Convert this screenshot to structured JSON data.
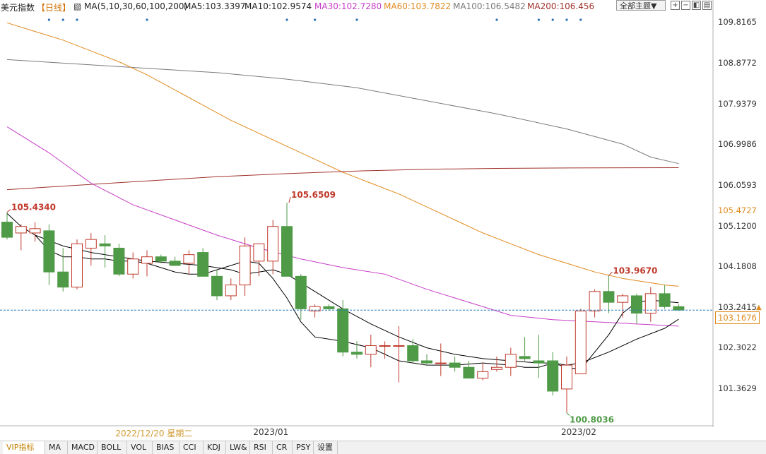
{
  "legend": {
    "symbol": "美元指数",
    "period": "【日线】",
    "ma_params": "MA(5,10,30,60,100,200)",
    "ma5": "MA5:103.3397",
    "ma10": "MA10:102.9574",
    "ma30": "MA30:102.7280",
    "ma60": "MA60:103.7822",
    "ma100": "MA100:106.5482",
    "ma200": "MA200:106.456"
  },
  "toolbar": {
    "theme_label": "全部主题▼",
    "btn1": "+",
    "btn2": "−",
    "btn3": "◧",
    "btn4": "▤"
  },
  "colors": {
    "up": "#c0392b",
    "down": "#4e9a46",
    "ma5": "#000000",
    "ma10": "#000000",
    "ma30": "#c83cc8",
    "ma60": "#e08a1e",
    "ma100": "#7a7a7a",
    "ma200": "#a0322a",
    "crosshair": "#2a7fc0"
  },
  "chart_data": {
    "type": "candlestick",
    "ylim": [
      100.55,
      110.0
    ],
    "y_ticks": [
      "109.8165",
      "108.8772",
      "107.9379",
      "106.9986",
      "106.0593",
      "105.1200",
      "104.1808",
      "103.2415",
      "102.3022",
      "101.3629"
    ],
    "y_tick_values": [
      109.8165,
      108.8772,
      107.9379,
      106.9986,
      106.0593,
      105.12,
      104.1808,
      103.2415,
      102.3022,
      101.3629
    ],
    "x_labels": [
      "2022/12/20 星期二",
      "2023/01",
      "2023/02"
    ],
    "x_label_index": [
      8,
      18,
      40
    ],
    "candles": [
      {
        "o": 105.2,
        "h": 105.43,
        "l": 104.8,
        "c": 104.85
      },
      {
        "o": 104.95,
        "h": 105.15,
        "l": 104.55,
        "c": 105.1
      },
      {
        "o": 104.95,
        "h": 105.2,
        "l": 104.75,
        "c": 105.05
      },
      {
        "o": 105.0,
        "h": 105.15,
        "l": 103.75,
        "c": 104.05
      },
      {
        "o": 104.05,
        "h": 104.6,
        "l": 103.6,
        "c": 103.7
      },
      {
        "o": 103.7,
        "h": 104.8,
        "l": 103.65,
        "c": 104.7
      },
      {
        "o": 104.6,
        "h": 104.95,
        "l": 104.2,
        "c": 104.8
      },
      {
        "o": 104.7,
        "h": 104.9,
        "l": 104.15,
        "c": 104.65
      },
      {
        "o": 104.6,
        "h": 104.7,
        "l": 103.95,
        "c": 104.0
      },
      {
        "o": 104.0,
        "h": 104.5,
        "l": 103.9,
        "c": 104.35
      },
      {
        "o": 104.25,
        "h": 104.55,
        "l": 103.95,
        "c": 104.4
      },
      {
        "o": 104.4,
        "h": 104.45,
        "l": 104.25,
        "c": 104.3
      },
      {
        "o": 104.3,
        "h": 104.4,
        "l": 104.2,
        "c": 104.2
      },
      {
        "o": 104.25,
        "h": 104.55,
        "l": 104.0,
        "c": 104.45
      },
      {
        "o": 104.5,
        "h": 104.6,
        "l": 103.95,
        "c": 103.95
      },
      {
        "o": 103.95,
        "h": 104.1,
        "l": 103.4,
        "c": 103.5
      },
      {
        "o": 103.5,
        "h": 103.9,
        "l": 103.4,
        "c": 103.75
      },
      {
        "o": 103.75,
        "h": 104.85,
        "l": 103.5,
        "c": 104.65
      },
      {
        "o": 104.3,
        "h": 104.7,
        "l": 103.95,
        "c": 104.7
      },
      {
        "o": 104.3,
        "h": 105.25,
        "l": 104.0,
        "c": 105.1
      },
      {
        "o": 105.1,
        "h": 105.65,
        "l": 103.95,
        "c": 103.95
      },
      {
        "o": 103.95,
        "h": 104.0,
        "l": 102.95,
        "c": 103.2
      },
      {
        "o": 103.15,
        "h": 103.3,
        "l": 103.0,
        "c": 103.25
      },
      {
        "o": 103.25,
        "h": 103.3,
        "l": 103.15,
        "c": 103.2
      },
      {
        "o": 103.2,
        "h": 103.4,
        "l": 102.1,
        "c": 102.2
      },
      {
        "o": 102.2,
        "h": 102.45,
        "l": 102.05,
        "c": 102.15
      },
      {
        "o": 102.15,
        "h": 102.6,
        "l": 101.85,
        "c": 102.35
      },
      {
        "o": 102.35,
        "h": 102.45,
        "l": 102.05,
        "c": 102.35
      },
      {
        "o": 102.35,
        "h": 102.8,
        "l": 101.5,
        "c": 102.35
      },
      {
        "o": 102.35,
        "h": 102.5,
        "l": 101.95,
        "c": 102.0
      },
      {
        "o": 102.0,
        "h": 102.15,
        "l": 101.9,
        "c": 101.95
      },
      {
        "o": 101.95,
        "h": 102.4,
        "l": 101.65,
        "c": 101.95
      },
      {
        "o": 101.95,
        "h": 102.1,
        "l": 101.75,
        "c": 101.85
      },
      {
        "o": 101.85,
        "h": 102.0,
        "l": 101.65,
        "c": 101.6
      },
      {
        "o": 101.6,
        "h": 101.95,
        "l": 101.55,
        "c": 101.75
      },
      {
        "o": 101.8,
        "h": 102.1,
        "l": 101.75,
        "c": 101.85
      },
      {
        "o": 101.85,
        "h": 102.3,
        "l": 101.65,
        "c": 102.15
      },
      {
        "o": 102.1,
        "h": 102.55,
        "l": 102.0,
        "c": 102.05
      },
      {
        "o": 102.0,
        "h": 102.6,
        "l": 101.6,
        "c": 101.95
      },
      {
        "o": 102.0,
        "h": 102.2,
        "l": 101.2,
        "c": 101.3
      },
      {
        "o": 101.35,
        "h": 102.1,
        "l": 100.8,
        "c": 101.9
      },
      {
        "o": 101.7,
        "h": 103.2,
        "l": 101.7,
        "c": 103.15
      },
      {
        "o": 103.15,
        "h": 103.65,
        "l": 103.0,
        "c": 103.6
      },
      {
        "o": 103.6,
        "h": 103.97,
        "l": 103.1,
        "c": 103.35
      },
      {
        "o": 103.35,
        "h": 103.55,
        "l": 103.0,
        "c": 103.5
      },
      {
        "o": 103.5,
        "h": 103.55,
        "l": 102.85,
        "c": 103.1
      },
      {
        "o": 103.1,
        "h": 103.7,
        "l": 102.9,
        "c": 103.55
      },
      {
        "o": 103.55,
        "h": 103.75,
        "l": 103.2,
        "c": 103.25
      },
      {
        "o": 103.25,
        "h": 103.3,
        "l": 103.15,
        "c": 103.17
      }
    ],
    "ma60": [
      109.8,
      109.6,
      109.4,
      109.15,
      108.9,
      108.6,
      108.25,
      107.9,
      107.55,
      107.25,
      106.95,
      106.65,
      106.35,
      106.1,
      105.85,
      105.55,
      105.25,
      104.95,
      104.7,
      104.45,
      104.25,
      104.05,
      103.9,
      103.8,
      103.75,
      103.72
    ],
    "ma60_x": [
      0,
      2,
      4,
      6,
      8,
      10,
      12,
      14,
      16,
      18,
      20,
      22,
      24,
      26,
      28,
      30,
      32,
      34,
      36,
      38,
      40,
      42,
      44,
      46,
      47,
      48
    ],
    "ma100": [
      108.95,
      108.85,
      108.75,
      108.65,
      108.5,
      108.3,
      108.0,
      107.7,
      107.35,
      107.0,
      106.7,
      106.55
    ],
    "ma100_x": [
      0,
      5,
      10,
      15,
      20,
      25,
      30,
      35,
      40,
      44,
      46,
      48
    ],
    "ma200": [
      105.95,
      106.05,
      106.15,
      106.25,
      106.32,
      106.38,
      106.42,
      106.44,
      106.45,
      106.456
    ],
    "ma200_x": [
      0,
      5,
      10,
      15,
      20,
      25,
      30,
      35,
      40,
      48
    ],
    "ma30": [
      107.4,
      106.8,
      106.1,
      105.6,
      105.25,
      104.9,
      104.6,
      104.35,
      104.15,
      104.0,
      103.65,
      103.35,
      103.05,
      102.95,
      102.9,
      102.8
    ],
    "ma30_x": [
      0,
      3,
      6,
      9,
      12,
      15,
      18,
      21,
      24,
      27,
      30,
      33,
      36,
      39,
      42,
      48
    ],
    "ma5": [
      105.4,
      105.1,
      104.9,
      104.55,
      104.4,
      104.4,
      104.35,
      104.35,
      104.3,
      104.3,
      104.25,
      104.15,
      104.05,
      104.0,
      104.0,
      104.1,
      104.2,
      104.3,
      104.25,
      103.9,
      103.45,
      102.9,
      102.55,
      102.45,
      102.3,
      102.0,
      101.9,
      101.9,
      101.95,
      101.9,
      101.85,
      101.85,
      101.95,
      101.85,
      101.8,
      102.2,
      102.6,
      103.1,
      103.35,
      103.4,
      103.34
    ],
    "ma5_x": [
      0,
      1,
      2,
      3,
      4,
      5,
      6,
      7,
      8,
      9,
      10,
      11,
      12,
      13,
      14,
      15,
      16,
      17,
      18,
      19,
      20,
      21,
      22,
      24,
      26,
      28,
      30,
      32,
      34,
      36,
      37,
      38,
      39,
      40,
      41,
      42,
      43,
      44,
      45,
      46,
      48
    ],
    "ma10": [
      104.9,
      104.65,
      104.5,
      104.4,
      104.3,
      104.25,
      104.2,
      104.1,
      104.0,
      104.05,
      104.1,
      104.0,
      103.6,
      103.2,
      102.85,
      102.55,
      102.3,
      102.15,
      102.05,
      102.0,
      101.95,
      101.95,
      101.9,
      101.95,
      102.2,
      102.5,
      102.75,
      102.96
    ],
    "ma10_x": [
      2,
      4,
      6,
      8,
      10,
      12,
      14,
      16,
      17,
      18,
      19,
      20,
      22,
      24,
      26,
      28,
      30,
      32,
      34,
      36,
      38,
      39,
      40,
      41,
      43,
      45,
      47,
      48
    ],
    "marks": {
      "high_first": "105.4340",
      "high_mid": "105.6509",
      "high_recent": "103.9670",
      "low": "100.8036"
    },
    "right_labels": {
      "ma60_value": "105.4727",
      "last_value": "103.1676"
    },
    "events": [
      3,
      4,
      5,
      10,
      20,
      22,
      25,
      35,
      38,
      39,
      40,
      41
    ]
  },
  "tabs": [
    "VIP指标",
    "MA",
    "MACD",
    "BOLL",
    "VOL",
    "BIAS",
    "CCI",
    "KDJ",
    "LW&",
    "RSI",
    "CR",
    "PSY",
    "设置"
  ]
}
